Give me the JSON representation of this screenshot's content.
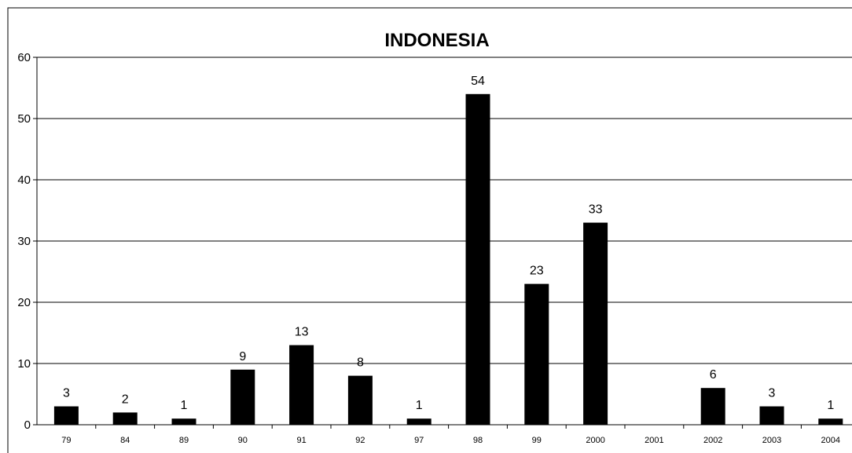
{
  "chart_data": {
    "type": "bar",
    "title": "INDONESIA",
    "xlabel": "",
    "ylabel": "",
    "categories": [
      "79",
      "84",
      "89",
      "90",
      "91",
      "92",
      "97",
      "98",
      "99",
      "2000",
      "2001",
      "2002",
      "2003",
      "2004"
    ],
    "values": [
      3,
      2,
      1,
      9,
      13,
      8,
      1,
      54,
      23,
      33,
      0,
      6,
      3,
      1
    ],
    "data_labels": [
      "3",
      "2",
      "1",
      "9",
      "13",
      "8",
      "1",
      "54",
      "23",
      "33",
      "",
      "6",
      "3",
      "1"
    ],
    "ylim": [
      0,
      60
    ],
    "yticks": [
      "0",
      "10",
      "20",
      "30",
      "40",
      "50",
      "60"
    ],
    "grid": true,
    "legend": "none",
    "bar_color": "#000000",
    "grid_color": "#000000"
  }
}
